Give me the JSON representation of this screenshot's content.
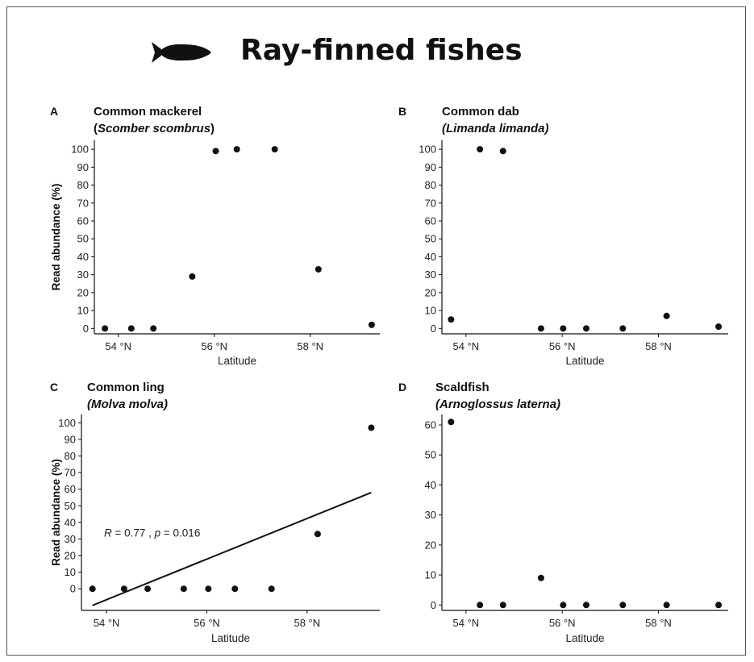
{
  "title": "Ray-finned fishes",
  "fish_icon": "fish-silhouette-icon",
  "chart_data": [
    {
      "panel": "A",
      "type": "scatter",
      "title_line1": "Common mackerel",
      "title_line2_prefix": "(",
      "title_line2_italic": "Scomber scombrus",
      "title_line2_suffix": ")",
      "xlabel": "Latitude",
      "ylabel": "Read abundance (%)",
      "xticks": [
        "54 °N",
        "56 °N",
        "58 °N"
      ],
      "xtick_values": [
        54,
        56,
        58
      ],
      "yticks": [
        0,
        10,
        20,
        30,
        40,
        50,
        60,
        70,
        80,
        90,
        100
      ],
      "ylim": [
        -3,
        105
      ],
      "xlim": [
        53.5,
        59.45
      ],
      "x": [
        53.72,
        54.27,
        54.73,
        55.54,
        56.03,
        56.47,
        57.26,
        58.17,
        59.28
      ],
      "y": [
        0,
        0,
        0,
        29,
        99,
        100,
        100,
        33,
        2
      ]
    },
    {
      "panel": "B",
      "type": "scatter",
      "title_line1": "Common dab",
      "title_line2_prefix": "(",
      "title_line2_italic": "Limanda limanda",
      "title_line2_suffix": ")",
      "xlabel": "Latitude",
      "ylabel": "",
      "xticks": [
        "54 °N",
        "56 °N",
        "58 °N"
      ],
      "xtick_values": [
        54,
        56,
        58
      ],
      "yticks": [
        0,
        10,
        20,
        30,
        40,
        50,
        60,
        70,
        80,
        90,
        100
      ],
      "ylim": [
        -3,
        105
      ],
      "xlim": [
        53.5,
        59.45
      ],
      "x": [
        53.69,
        54.29,
        54.77,
        55.56,
        56.02,
        56.5,
        57.26,
        58.17,
        59.25
      ],
      "y": [
        5,
        100,
        99,
        0,
        0,
        0,
        0,
        7,
        1
      ]
    },
    {
      "panel": "C",
      "type": "scatter",
      "title_line1": "Common ling",
      "title_line2_prefix": "(",
      "title_line2_italic": "Molva molva",
      "title_line2_suffix": ")",
      "xlabel": "Latitude",
      "ylabel": "Read abundance (%)",
      "xticks": [
        "54 °N",
        "56 °N",
        "58 °N"
      ],
      "xtick_values": [
        54,
        56,
        58
      ],
      "yticks": [
        0,
        10,
        20,
        30,
        40,
        50,
        60,
        70,
        80,
        90,
        100
      ],
      "ylim": [
        -13,
        105
      ],
      "xlim": [
        53.5,
        59.45
      ],
      "x": [
        53.72,
        54.35,
        54.82,
        55.54,
        56.03,
        56.56,
        57.29,
        58.21,
        59.28
      ],
      "y": [
        0,
        0,
        0,
        0,
        0,
        0,
        0,
        33,
        97
      ],
      "regression": {
        "x": [
          53.72,
          59.28
        ],
        "y": [
          -10,
          58
        ]
      },
      "annotation": {
        "r_symbol": "R",
        "r_text": " = 0.77 , ",
        "p_symbol": "p",
        "p_text": " = 0.016",
        "x": 53.95,
        "y": 31.5
      }
    },
    {
      "panel": "D",
      "type": "scatter",
      "title_line1": "Scaldfish",
      "title_line2_prefix": "(",
      "title_line2_italic": "Arnoglossus laterna",
      "title_line2_suffix": ")",
      "xlabel": "Latitude",
      "ylabel": "",
      "xticks": [
        "54 °N",
        "56 °N",
        "58 °N"
      ],
      "xtick_values": [
        54,
        56,
        58
      ],
      "yticks": [
        0,
        10,
        20,
        30,
        40,
        50,
        60
      ],
      "ylim": [
        -1.8,
        63.5
      ],
      "xlim": [
        53.5,
        59.45
      ],
      "x": [
        53.69,
        54.29,
        54.77,
        55.56,
        56.02,
        56.5,
        57.26,
        58.17,
        59.25
      ],
      "y": [
        61,
        0,
        0,
        9,
        0,
        0,
        0,
        0,
        0
      ]
    }
  ]
}
